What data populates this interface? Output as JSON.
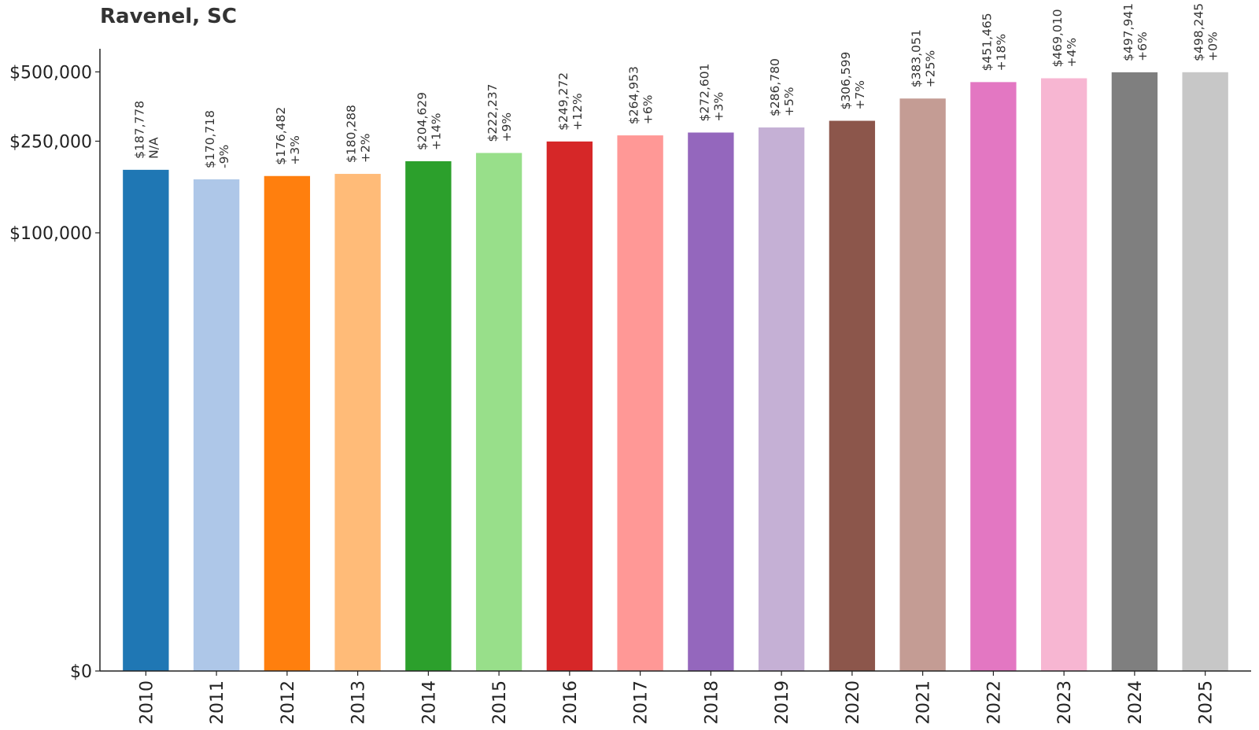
{
  "chart_data": {
    "type": "bar",
    "title": "Ravenel, SC",
    "xlabel": "",
    "ylabel": "",
    "y_scale": "symlog",
    "ylim": [
      0,
      630000
    ],
    "yticks": [
      0,
      100000,
      250000,
      500000
    ],
    "ytick_labels": [
      "$0",
      "$100,000",
      "$250,000",
      "$500,000"
    ],
    "grid": false,
    "legend": "none",
    "categories": [
      "2010",
      "2011",
      "2012",
      "2013",
      "2014",
      "2015",
      "2016",
      "2017",
      "2018",
      "2019",
      "2020",
      "2021",
      "2022",
      "2023",
      "2024",
      "2025"
    ],
    "values": [
      187778,
      170718,
      176482,
      180288,
      204629,
      222237,
      249272,
      264953,
      272601,
      286780,
      306599,
      383051,
      451465,
      469010,
      497941,
      498245
    ],
    "value_labels": [
      "$187,778",
      "$170,718",
      "$176,482",
      "$180,288",
      "$204,629",
      "$222,237",
      "$249,272",
      "$264,953",
      "$272,601",
      "$286,780",
      "$306,599",
      "$383,051",
      "$451,465",
      "$469,010",
      "$497,941",
      "$498,245"
    ],
    "change_labels": [
      "N/A",
      "-9%",
      "+3%",
      "+2%",
      "+14%",
      "+9%",
      "+12%",
      "+6%",
      "+3%",
      "+5%",
      "+7%",
      "+25%",
      "+18%",
      "+4%",
      "+6%",
      "+0%"
    ],
    "colors": [
      "#1f77b4",
      "#aec7e8",
      "#ff7f0e",
      "#ffbb78",
      "#2ca02c",
      "#98df8a",
      "#d62728",
      "#ff9896",
      "#9467bd",
      "#c5b0d5",
      "#8c564b",
      "#c49c94",
      "#e377c2",
      "#f7b6d2",
      "#7f7f7f",
      "#c7c7c7"
    ]
  }
}
